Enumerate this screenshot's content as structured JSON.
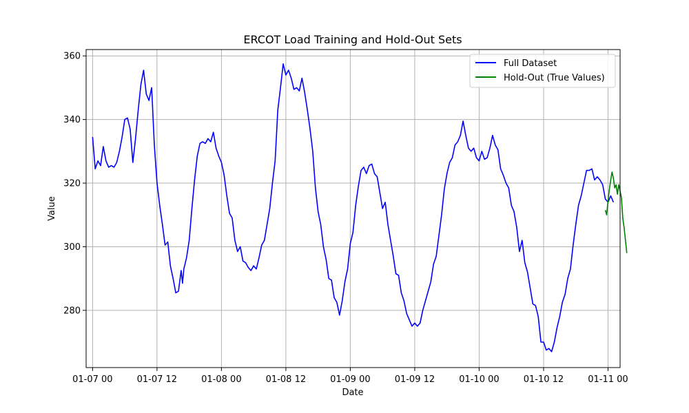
{
  "chart_data": {
    "type": "line",
    "title": "ERCOT Load Training and Hold-Out Sets",
    "xlabel": "Date",
    "ylabel": "Value",
    "x_range": [
      "2018-01-06T22:48",
      "2018-01-11T02:15"
    ],
    "ylim": [
      262,
      362
    ],
    "x_ticks": [
      {
        "t": "2018-01-07T00:00",
        "label": "01-07 00"
      },
      {
        "t": "2018-01-07T12:00",
        "label": "01-07 12"
      },
      {
        "t": "2018-01-08T00:00",
        "label": "01-08 00"
      },
      {
        "t": "2018-01-08T12:00",
        "label": "01-08 12"
      },
      {
        "t": "2018-01-09T00:00",
        "label": "01-09 00"
      },
      {
        "t": "2018-01-09T12:00",
        "label": "01-09 12"
      },
      {
        "t": "2018-01-10T00:00",
        "label": "01-10 00"
      },
      {
        "t": "2018-01-10T12:00",
        "label": "01-10 12"
      },
      {
        "t": "2018-01-11T00:00",
        "label": "01-11 00"
      }
    ],
    "y_ticks": [
      280,
      300,
      320,
      340,
      360
    ],
    "grid": true,
    "legend": {
      "position": "top-right"
    },
    "series": [
      {
        "name": "Full Dataset",
        "color": "#0000ff",
        "points": [
          [
            "2018-01-07T00:00",
            334.5
          ],
          [
            "2018-01-07T00:30",
            324.5
          ],
          [
            "2018-01-07T01:00",
            327
          ],
          [
            "2018-01-07T01:30",
            325.5
          ],
          [
            "2018-01-07T02:00",
            331.5
          ],
          [
            "2018-01-07T02:30",
            327
          ],
          [
            "2018-01-07T03:00",
            325
          ],
          [
            "2018-01-07T03:30",
            325.5
          ],
          [
            "2018-01-07T04:00",
            325
          ],
          [
            "2018-01-07T04:30",
            326.5
          ],
          [
            "2018-01-07T05:00",
            330
          ],
          [
            "2018-01-07T05:30",
            334.5
          ],
          [
            "2018-01-07T06:00",
            340
          ],
          [
            "2018-01-07T06:30",
            340.5
          ],
          [
            "2018-01-07T07:00",
            337
          ],
          [
            "2018-01-07T07:30",
            326.5
          ],
          [
            "2018-01-07T08:00",
            334
          ],
          [
            "2018-01-07T08:30",
            343
          ],
          [
            "2018-01-07T09:00",
            351
          ],
          [
            "2018-01-07T09:30",
            355.5
          ],
          [
            "2018-01-07T10:00",
            348
          ],
          [
            "2018-01-07T10:30",
            346
          ],
          [
            "2018-01-07T11:00",
            350
          ],
          [
            "2018-01-07T11:30",
            332
          ],
          [
            "2018-01-07T12:00",
            320
          ],
          [
            "2018-01-07T12:30",
            313
          ],
          [
            "2018-01-07T13:00",
            307
          ],
          [
            "2018-01-07T13:30",
            300.5
          ],
          [
            "2018-01-07T14:00",
            301.5
          ],
          [
            "2018-01-07T14:30",
            294
          ],
          [
            "2018-01-07T15:00",
            290
          ],
          [
            "2018-01-07T15:30",
            285.5
          ],
          [
            "2018-01-07T16:00",
            286
          ],
          [
            "2018-01-07T16:30",
            292.5
          ],
          [
            "2018-01-07T16:45",
            288.5
          ],
          [
            "2018-01-07T17:00",
            293
          ],
          [
            "2018-01-07T17:30",
            296.5
          ],
          [
            "2018-01-07T18:00",
            302
          ],
          [
            "2018-01-07T18:30",
            312
          ],
          [
            "2018-01-07T19:00",
            321
          ],
          [
            "2018-01-07T19:30",
            328.5
          ],
          [
            "2018-01-07T20:00",
            332.5
          ],
          [
            "2018-01-07T20:30",
            333
          ],
          [
            "2018-01-07T21:00",
            332.5
          ],
          [
            "2018-01-07T21:30",
            334
          ],
          [
            "2018-01-07T22:00",
            333
          ],
          [
            "2018-01-07T22:30",
            336
          ],
          [
            "2018-01-07T23:00",
            331
          ],
          [
            "2018-01-07T23:30",
            328.5
          ],
          [
            "2018-01-08T00:00",
            326.5
          ],
          [
            "2018-01-08T00:30",
            322.5
          ],
          [
            "2018-01-08T01:00",
            316
          ],
          [
            "2018-01-08T01:30",
            310.5
          ],
          [
            "2018-01-08T02:00",
            309
          ],
          [
            "2018-01-08T02:30",
            302
          ],
          [
            "2018-01-08T03:00",
            298.5
          ],
          [
            "2018-01-08T03:30",
            300
          ],
          [
            "2018-01-08T04:00",
            295.5
          ],
          [
            "2018-01-08T04:30",
            295
          ],
          [
            "2018-01-08T05:00",
            293.5
          ],
          [
            "2018-01-08T05:30",
            292.5
          ],
          [
            "2018-01-08T06:00",
            294
          ],
          [
            "2018-01-08T06:30",
            293
          ],
          [
            "2018-01-08T07:00",
            296.5
          ],
          [
            "2018-01-08T07:30",
            300.5
          ],
          [
            "2018-01-08T08:00",
            302
          ],
          [
            "2018-01-08T08:30",
            307
          ],
          [
            "2018-01-08T09:00",
            312
          ],
          [
            "2018-01-08T09:30",
            320
          ],
          [
            "2018-01-08T10:00",
            327
          ],
          [
            "2018-01-08T10:30",
            343
          ],
          [
            "2018-01-08T11:00",
            350
          ],
          [
            "2018-01-08T11:30",
            357.5
          ],
          [
            "2018-01-08T12:00",
            354
          ],
          [
            "2018-01-08T12:30",
            355.5
          ],
          [
            "2018-01-08T13:00",
            353
          ],
          [
            "2018-01-08T13:30",
            349.5
          ],
          [
            "2018-01-08T14:00",
            350
          ],
          [
            "2018-01-08T14:30",
            349
          ],
          [
            "2018-01-08T15:00",
            353
          ],
          [
            "2018-01-08T15:30",
            348.5
          ],
          [
            "2018-01-08T16:00",
            343
          ],
          [
            "2018-01-08T16:30",
            337
          ],
          [
            "2018-01-08T17:00",
            330
          ],
          [
            "2018-01-08T17:30",
            318.5
          ],
          [
            "2018-01-08T18:00",
            311
          ],
          [
            "2018-01-08T18:30",
            307
          ],
          [
            "2018-01-08T19:00",
            300
          ],
          [
            "2018-01-08T19:30",
            296
          ],
          [
            "2018-01-08T20:00",
            290
          ],
          [
            "2018-01-08T20:30",
            289.5
          ],
          [
            "2018-01-08T21:00",
            284
          ],
          [
            "2018-01-08T21:30",
            282.5
          ],
          [
            "2018-01-08T22:00",
            278.5
          ],
          [
            "2018-01-08T22:30",
            283
          ],
          [
            "2018-01-08T23:00",
            289
          ],
          [
            "2018-01-08T23:30",
            293
          ],
          [
            "2018-01-09T00:00",
            301
          ],
          [
            "2018-01-09T00:30",
            304.5
          ],
          [
            "2018-01-09T01:00",
            313
          ],
          [
            "2018-01-09T01:30",
            319
          ],
          [
            "2018-01-09T02:00",
            324
          ],
          [
            "2018-01-09T02:30",
            325
          ],
          [
            "2018-01-09T03:00",
            323
          ],
          [
            "2018-01-09T03:30",
            325.5
          ],
          [
            "2018-01-09T04:00",
            326
          ],
          [
            "2018-01-09T04:30",
            323
          ],
          [
            "2018-01-09T05:00",
            322
          ],
          [
            "2018-01-09T05:30",
            317
          ],
          [
            "2018-01-09T06:00",
            312
          ],
          [
            "2018-01-09T06:30",
            314
          ],
          [
            "2018-01-09T07:00",
            307
          ],
          [
            "2018-01-09T07:30",
            302
          ],
          [
            "2018-01-09T08:00",
            297
          ],
          [
            "2018-01-09T08:30",
            291.5
          ],
          [
            "2018-01-09T09:00",
            291
          ],
          [
            "2018-01-09T09:30",
            285.5
          ],
          [
            "2018-01-09T10:00",
            283
          ],
          [
            "2018-01-09T10:30",
            279
          ],
          [
            "2018-01-09T11:00",
            277
          ],
          [
            "2018-01-09T11:30",
            275
          ],
          [
            "2018-01-09T12:00",
            276
          ],
          [
            "2018-01-09T12:30",
            275
          ],
          [
            "2018-01-09T13:00",
            276
          ],
          [
            "2018-01-09T13:30",
            280
          ],
          [
            "2018-01-09T14:00",
            283
          ],
          [
            "2018-01-09T14:30",
            286
          ],
          [
            "2018-01-09T15:00",
            289
          ],
          [
            "2018-01-09T15:30",
            294.5
          ],
          [
            "2018-01-09T16:00",
            297
          ],
          [
            "2018-01-09T16:30",
            303.5
          ],
          [
            "2018-01-09T17:00",
            310
          ],
          [
            "2018-01-09T17:30",
            318
          ],
          [
            "2018-01-09T18:00",
            323
          ],
          [
            "2018-01-09T18:30",
            326.5
          ],
          [
            "2018-01-09T19:00",
            328
          ],
          [
            "2018-01-09T19:30",
            332
          ],
          [
            "2018-01-09T20:00",
            333
          ],
          [
            "2018-01-09T20:30",
            335
          ],
          [
            "2018-01-09T21:00",
            339.5
          ],
          [
            "2018-01-09T21:30",
            335
          ],
          [
            "2018-01-09T22:00",
            331
          ],
          [
            "2018-01-09T22:30",
            330
          ],
          [
            "2018-01-09T23:00",
            331
          ],
          [
            "2018-01-09T23:30",
            328
          ],
          [
            "2018-01-10T00:00",
            327
          ],
          [
            "2018-01-10T00:30",
            330
          ],
          [
            "2018-01-10T01:00",
            327.5
          ],
          [
            "2018-01-10T01:30",
            328
          ],
          [
            "2018-01-10T02:00",
            331
          ],
          [
            "2018-01-10T02:30",
            335
          ],
          [
            "2018-01-10T03:00",
            332
          ],
          [
            "2018-01-10T03:30",
            330.5
          ],
          [
            "2018-01-10T04:00",
            324.5
          ],
          [
            "2018-01-10T04:30",
            322.5
          ],
          [
            "2018-01-10T05:00",
            320
          ],
          [
            "2018-01-10T05:30",
            318.5
          ],
          [
            "2018-01-10T06:00",
            313
          ],
          [
            "2018-01-10T06:30",
            311
          ],
          [
            "2018-01-10T07:00",
            306
          ],
          [
            "2018-01-10T07:30",
            298.5
          ],
          [
            "2018-01-10T08:00",
            302
          ],
          [
            "2018-01-10T08:30",
            295
          ],
          [
            "2018-01-10T09:00",
            292
          ],
          [
            "2018-01-10T09:30",
            287
          ],
          [
            "2018-01-10T10:00",
            282
          ],
          [
            "2018-01-10T10:30",
            281.5
          ],
          [
            "2018-01-10T11:00",
            278
          ],
          [
            "2018-01-10T11:30",
            270
          ],
          [
            "2018-01-10T12:00",
            270
          ],
          [
            "2018-01-10T12:30",
            267.5
          ],
          [
            "2018-01-10T13:00",
            268
          ],
          [
            "2018-01-10T13:30",
            267
          ],
          [
            "2018-01-10T14:00",
            270
          ],
          [
            "2018-01-10T14:30",
            274.5
          ],
          [
            "2018-01-10T15:00",
            278
          ],
          [
            "2018-01-10T15:30",
            282.5
          ],
          [
            "2018-01-10T16:00",
            285
          ],
          [
            "2018-01-10T16:30",
            290
          ],
          [
            "2018-01-10T17:00",
            293
          ],
          [
            "2018-01-10T17:30",
            300.5
          ],
          [
            "2018-01-10T18:00",
            307
          ],
          [
            "2018-01-10T18:30",
            313
          ],
          [
            "2018-01-10T19:00",
            316
          ],
          [
            "2018-01-10T19:30",
            320
          ],
          [
            "2018-01-10T20:00",
            324
          ],
          [
            "2018-01-10T20:30",
            324
          ],
          [
            "2018-01-10T21:00",
            324.5
          ],
          [
            "2018-01-10T21:30",
            321
          ],
          [
            "2018-01-10T22:00",
            322
          ],
          [
            "2018-01-10T22:30",
            321
          ],
          [
            "2018-01-10T23:00",
            319.5
          ],
          [
            "2018-01-10T23:30",
            315
          ],
          [
            "2018-01-11T00:00",
            314
          ],
          [
            "2018-01-11T00:30",
            316
          ],
          [
            "2018-01-11T01:00",
            314
          ]
        ]
      },
      {
        "name": "Hold-Out (True Values)",
        "color": "#008000",
        "points": [
          [
            "2018-01-10T23:30",
            311.5
          ],
          [
            "2018-01-10T23:45",
            310
          ],
          [
            "2018-01-11T00:00",
            314.5
          ],
          [
            "2018-01-11T00:15",
            318
          ],
          [
            "2018-01-11T00:30",
            321
          ],
          [
            "2018-01-11T00:45",
            323.5
          ],
          [
            "2018-01-11T01:00",
            321.5
          ],
          [
            "2018-01-11T01:15",
            318.5
          ],
          [
            "2018-01-11T01:30",
            319.5
          ],
          [
            "2018-01-11T01:45",
            316.5
          ],
          [
            "2018-01-11T02:00",
            319.5
          ],
          [
            "2018-01-11T02:15",
            317.5
          ],
          [
            "2018-01-11T02:30",
            315.5
          ],
          [
            "2018-01-11T02:45",
            309
          ],
          [
            "2018-01-11T03:00",
            306
          ],
          [
            "2018-01-11T03:15",
            302
          ],
          [
            "2018-01-11T03:30",
            298
          ]
        ]
      }
    ]
  }
}
